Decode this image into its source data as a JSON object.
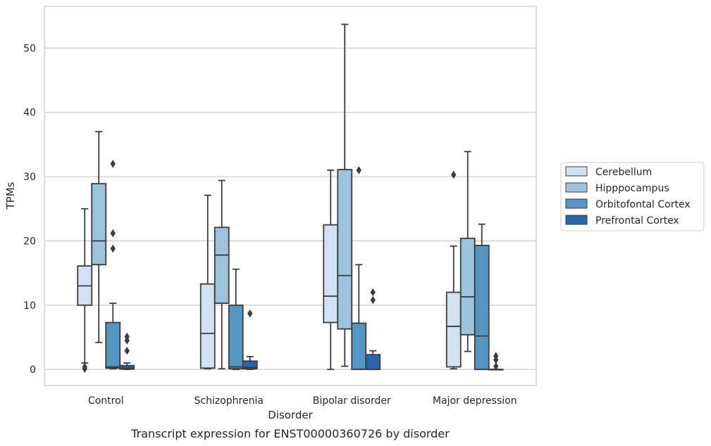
{
  "chart_data": {
    "type": "box",
    "title": "Transcript expression for ENST00000360726 by disorder",
    "xlabel": "Disorder",
    "ylabel": "TPMs",
    "ylim": [
      -2.5,
      56.5
    ],
    "yticks": [
      0,
      10,
      20,
      30,
      40,
      50
    ],
    "grid": "horizontal",
    "legend_position": "right",
    "categories": [
      "Control",
      "Schizophrenia",
      "Bipolar disorder",
      "Major depression"
    ],
    "series": [
      {
        "name": "Cerebellum",
        "color": "#d2e1f0",
        "boxes": [
          {
            "whislo": 1.0,
            "q1": 10.0,
            "med": 13.0,
            "q3": 16.1,
            "whishi": 25.0,
            "fliers": [
              0.1,
              0.4
            ]
          },
          {
            "whislo": 0.1,
            "q1": 0.2,
            "med": 5.6,
            "q3": 13.3,
            "whishi": 27.1,
            "fliers": []
          },
          {
            "whislo": 0.0,
            "q1": 7.3,
            "med": 11.4,
            "q3": 22.5,
            "whishi": 31.0,
            "fliers": []
          },
          {
            "whislo": 0.1,
            "q1": 0.4,
            "med": 6.7,
            "q3": 12.0,
            "whishi": 19.2,
            "fliers": [
              30.3
            ]
          }
        ]
      },
      {
        "name": "Hipppocampus",
        "color": "#9bc3dc",
        "boxes": [
          {
            "whislo": 4.2,
            "q1": 16.3,
            "med": 20.0,
            "q3": 28.9,
            "whishi": 37.0,
            "fliers": []
          },
          {
            "whislo": 0.1,
            "q1": 10.3,
            "med": 17.8,
            "q3": 22.1,
            "whishi": 29.4,
            "fliers": []
          },
          {
            "whislo": 0.5,
            "q1": 6.3,
            "med": 14.6,
            "q3": 31.1,
            "whishi": 53.7,
            "fliers": []
          },
          {
            "whislo": 2.8,
            "q1": 5.4,
            "med": 11.3,
            "q3": 20.4,
            "whishi": 33.9,
            "fliers": []
          }
        ]
      },
      {
        "name": "Orbitofontal Cortex",
        "color": "#5495c1",
        "boxes": [
          {
            "whislo": 0.1,
            "q1": 0.2,
            "med": 0.4,
            "q3": 7.3,
            "whishi": 10.3,
            "fliers": [
              18.8,
              21.2,
              32.0
            ]
          },
          {
            "whislo": 0.0,
            "q1": 0.1,
            "med": 0.4,
            "q3": 10.0,
            "whishi": 15.6,
            "fliers": []
          },
          {
            "whislo": 0.0,
            "q1": 0.0,
            "med": 0.0,
            "q3": 7.2,
            "whishi": 16.3,
            "fliers": [
              31.0
            ]
          },
          {
            "whislo": 0.0,
            "q1": 0.0,
            "med": 5.2,
            "q3": 19.3,
            "whishi": 22.6,
            "fliers": []
          }
        ]
      },
      {
        "name": "Prefrontal Cortex",
        "color": "#2967a8",
        "boxes": [
          {
            "whislo": 0.0,
            "q1": 0.05,
            "med": 0.2,
            "q3": 0.6,
            "whishi": 1.0,
            "fliers": [
              2.9,
              4.5,
              5.1
            ]
          },
          {
            "whislo": 0.0,
            "q1": 0.1,
            "med": 0.3,
            "q3": 1.3,
            "whishi": 2.0,
            "fliers": [
              8.7
            ]
          },
          {
            "whislo": 0.0,
            "q1": 0.0,
            "med": 0.0,
            "q3": 2.3,
            "whishi": 2.9,
            "fliers": [
              10.8,
              12.0
            ]
          },
          {
            "whislo": 0.0,
            "q1": 0.0,
            "med": 0.0,
            "q3": 0.0,
            "whishi": 0.0,
            "fliers": [
              0.5,
              1.5,
              2.1
            ]
          }
        ]
      }
    ]
  }
}
